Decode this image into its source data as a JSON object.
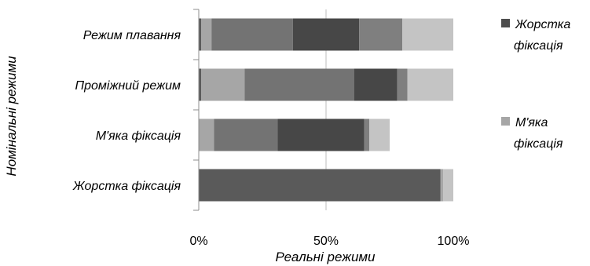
{
  "chart_data": {
    "type": "bar",
    "orientation": "horizontal",
    "stacked": "percent",
    "categories": [
      "Режим плавання",
      "Проміжний режим",
      "М'яка фіксація",
      "Жорстка фіксація"
    ],
    "segments": [
      {
        "color": "#5a5a5a",
        "values": [
          1,
          1,
          0,
          95
        ]
      },
      {
        "color": "#a6a6a6",
        "values": [
          4,
          17,
          6,
          1
        ]
      },
      {
        "color": "#737373",
        "values": [
          32,
          43,
          25,
          0
        ]
      },
      {
        "color": "#474747",
        "values": [
          26,
          17,
          34,
          0
        ]
      },
      {
        "color": "#7f7f7f",
        "values": [
          17,
          4,
          2,
          0
        ]
      },
      {
        "color": "#c4c4c4",
        "values": [
          20,
          18,
          8,
          4
        ]
      }
    ],
    "xticks": [
      "0%",
      "50%",
      "100%"
    ],
    "xlim": [
      0,
      100
    ],
    "xlabel": "Реальні режими",
    "ylabel": "Номінальні режими",
    "grid": "vertical-at-50%",
    "legend_position": "right",
    "legend": [
      {
        "lines": [
          "Жорстка",
          "фіксація"
        ],
        "color": "#4d4d4d"
      },
      {
        "lines": [
          "М'яка",
          "фіксація"
        ],
        "color": "#a6a6a6"
      }
    ]
  }
}
